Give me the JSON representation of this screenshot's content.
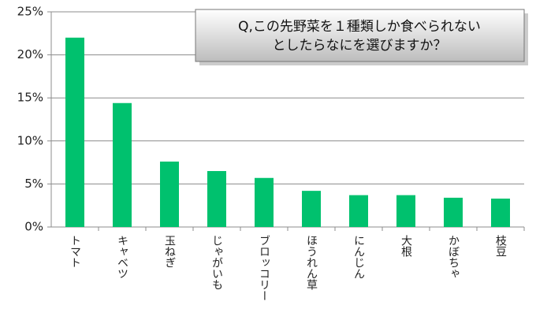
{
  "chart_data": {
    "type": "bar",
    "title": [
      "Q,この先野菜を１種類しか食べられない",
      "としたらなにを選びますか？"
    ],
    "categories": [
      "トマト",
      "キャベツ",
      "玉ねぎ",
      "じゃがいも",
      "ブロッコリー",
      "ほうれん草",
      "にんじん",
      "大根",
      "かぼちゃ",
      "枝豆"
    ],
    "values": [
      22.0,
      14.4,
      7.6,
      6.5,
      5.7,
      4.2,
      3.7,
      3.7,
      3.4,
      3.3
    ],
    "color": "#00c16e",
    "ylim": [
      0,
      25
    ],
    "yticks": [
      {
        "value": 0,
        "label": "0%"
      },
      {
        "value": 5,
        "label": "5%"
      },
      {
        "value": 10,
        "label": "10%"
      },
      {
        "value": 15,
        "label": "15%"
      },
      {
        "value": 20,
        "label": "20%"
      },
      {
        "value": 25,
        "label": "25%"
      }
    ],
    "grid": true
  }
}
